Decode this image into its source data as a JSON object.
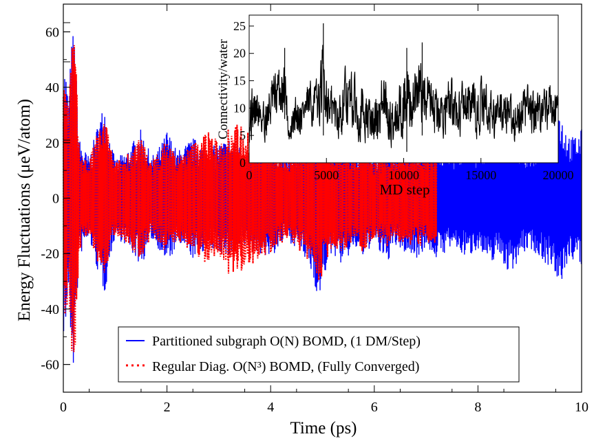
{
  "chart_data": [
    {
      "type": "line",
      "xlabel": "Time (ps)",
      "ylabel": "Energy Fluctuations (μeV/atom)",
      "xlim": [
        0,
        10
      ],
      "ylim": [
        -70,
        70
      ],
      "xticks": [
        "0",
        "2",
        "4",
        "6",
        "8",
        "10"
      ],
      "yticks": [
        "-60",
        "-40",
        "-20",
        "0",
        "20",
        "40",
        "60"
      ],
      "grid": false,
      "legend_position": "bottom-center",
      "series": [
        {
          "name": "Partitioned subgraph O(N) BOMD, (1 DM/Step)",
          "color": "#0000ff",
          "style": "solid",
          "x_range": [
            0,
            10
          ],
          "envelope": [
            [
              0.0,
              50
            ],
            [
              0.05,
              48
            ],
            [
              0.1,
              35
            ],
            [
              0.15,
              55
            ],
            [
              0.2,
              63
            ],
            [
              0.25,
              45
            ],
            [
              0.3,
              22
            ],
            [
              0.4,
              18
            ],
            [
              0.5,
              15
            ],
            [
              0.6,
              22
            ],
            [
              0.7,
              30
            ],
            [
              0.8,
              35
            ],
            [
              0.9,
              22
            ],
            [
              1.0,
              14
            ],
            [
              1.2,
              17
            ],
            [
              1.4,
              22
            ],
            [
              1.5,
              25
            ],
            [
              1.7,
              15
            ],
            [
              1.9,
              20
            ],
            [
              2.0,
              25
            ],
            [
              2.2,
              17
            ],
            [
              2.5,
              22
            ],
            [
              2.8,
              18
            ],
            [
              3.0,
              20
            ],
            [
              3.2,
              22
            ],
            [
              3.5,
              18
            ],
            [
              3.8,
              20
            ],
            [
              4.0,
              22
            ],
            [
              4.3,
              15
            ],
            [
              4.5,
              18
            ],
            [
              4.7,
              24
            ],
            [
              4.8,
              28
            ],
            [
              4.9,
              35
            ],
            [
              4.95,
              38
            ],
            [
              5.0,
              30
            ],
            [
              5.2,
              20
            ],
            [
              5.4,
              25
            ],
            [
              5.6,
              18
            ],
            [
              5.8,
              22
            ],
            [
              6.0,
              15
            ],
            [
              6.2,
              25
            ],
            [
              6.4,
              18
            ],
            [
              6.6,
              20
            ],
            [
              6.8,
              22
            ],
            [
              7.0,
              18
            ],
            [
              7.2,
              22
            ],
            [
              7.5,
              18
            ],
            [
              7.8,
              22
            ],
            [
              8.0,
              18
            ],
            [
              8.2,
              25
            ],
            [
              8.4,
              20
            ],
            [
              8.6,
              28
            ],
            [
              8.8,
              22
            ],
            [
              9.0,
              18
            ],
            [
              9.2,
              22
            ],
            [
              9.4,
              25
            ],
            [
              9.55,
              35
            ],
            [
              9.65,
              28
            ],
            [
              9.8,
              22
            ],
            [
              10.0,
              25
            ]
          ]
        },
        {
          "name": "Regular Diag. O(N³) BOMD, (Fully Converged)",
          "color": "#ff0000",
          "style": "dotted",
          "x_range": [
            0,
            7.2
          ],
          "envelope": [
            [
              0.0,
              52
            ],
            [
              0.05,
              48
            ],
            [
              0.1,
              35
            ],
            [
              0.15,
              55
            ],
            [
              0.2,
              65
            ],
            [
              0.25,
              45
            ],
            [
              0.3,
              20
            ],
            [
              0.4,
              15
            ],
            [
              0.5,
              14
            ],
            [
              0.6,
              20
            ],
            [
              0.7,
              26
            ],
            [
              0.8,
              30
            ],
            [
              0.9,
              20
            ],
            [
              1.0,
              13
            ],
            [
              1.2,
              16
            ],
            [
              1.4,
              20
            ],
            [
              1.5,
              22
            ],
            [
              1.7,
              14
            ],
            [
              1.9,
              18
            ],
            [
              2.0,
              22
            ],
            [
              2.2,
              15
            ],
            [
              2.5,
              20
            ],
            [
              2.8,
              25
            ],
            [
              3.0,
              20
            ],
            [
              3.2,
              28
            ],
            [
              3.5,
              26
            ],
            [
              3.8,
              22
            ],
            [
              4.0,
              20
            ],
            [
              4.3,
              15
            ],
            [
              4.5,
              18
            ],
            [
              4.7,
              22
            ],
            [
              4.8,
              24
            ],
            [
              4.9,
              30
            ],
            [
              4.95,
              32
            ],
            [
              5.0,
              26
            ],
            [
              5.2,
              18
            ],
            [
              5.4,
              20
            ],
            [
              5.6,
              15
            ],
            [
              5.8,
              20
            ],
            [
              6.0,
              14
            ],
            [
              6.2,
              18
            ],
            [
              6.4,
              16
            ],
            [
              6.6,
              20
            ],
            [
              6.8,
              18
            ],
            [
              7.0,
              16
            ],
            [
              7.2,
              18
            ]
          ]
        }
      ]
    },
    {
      "type": "line",
      "xlabel": "MD step",
      "ylabel": "Connectivity/water",
      "xlim": [
        0,
        20000
      ],
      "ylim": [
        0,
        27
      ],
      "xticks": [
        "0",
        "5000",
        "10000",
        "15000",
        "20000"
      ],
      "yticks": [
        "0",
        "5",
        "10",
        "15",
        "20",
        "25"
      ],
      "series": [
        {
          "name": "",
          "color": "#000000",
          "style": "solid",
          "range_envelope": [
            [
              0,
              2,
              17
            ],
            [
              500,
              3,
              16
            ],
            [
              1000,
              2,
              14
            ],
            [
              1500,
              4,
              18
            ],
            [
              2000,
              6,
              20
            ],
            [
              2300,
              8,
              21
            ],
            [
              2600,
              1,
              8
            ],
            [
              3000,
              3,
              14
            ],
            [
              3500,
              4,
              15
            ],
            [
              4000,
              5,
              16
            ],
            [
              4500,
              6,
              17
            ],
            [
              4800,
              5,
              25.5
            ],
            [
              5200,
              4,
              16
            ],
            [
              5800,
              3,
              15
            ],
            [
              6300,
              4,
              20
            ],
            [
              6800,
              3,
              18
            ],
            [
              7500,
              2,
              16
            ],
            [
              8000,
              1,
              12
            ],
            [
              8600,
              3,
              19
            ],
            [
              9200,
              1,
              14
            ],
            [
              9700,
              2,
              17
            ],
            [
              10200,
              2,
              21
            ],
            [
              10600,
              4,
              18
            ],
            [
              11200,
              5,
              22
            ],
            [
              11700,
              3,
              17
            ],
            [
              12200,
              2,
              15
            ],
            [
              12800,
              4,
              17
            ],
            [
              13500,
              3,
              16
            ],
            [
              14000,
              4,
              18
            ],
            [
              14600,
              3,
              16
            ],
            [
              15200,
              4,
              17
            ],
            [
              15800,
              3,
              14
            ],
            [
              16500,
              4,
              16
            ],
            [
              17000,
              3,
              13
            ],
            [
              17500,
              2,
              15
            ],
            [
              18000,
              4,
              16
            ],
            [
              18800,
              3,
              15
            ],
            [
              19400,
              4,
              16
            ],
            [
              20000,
              5,
              14
            ]
          ]
        }
      ]
    }
  ]
}
